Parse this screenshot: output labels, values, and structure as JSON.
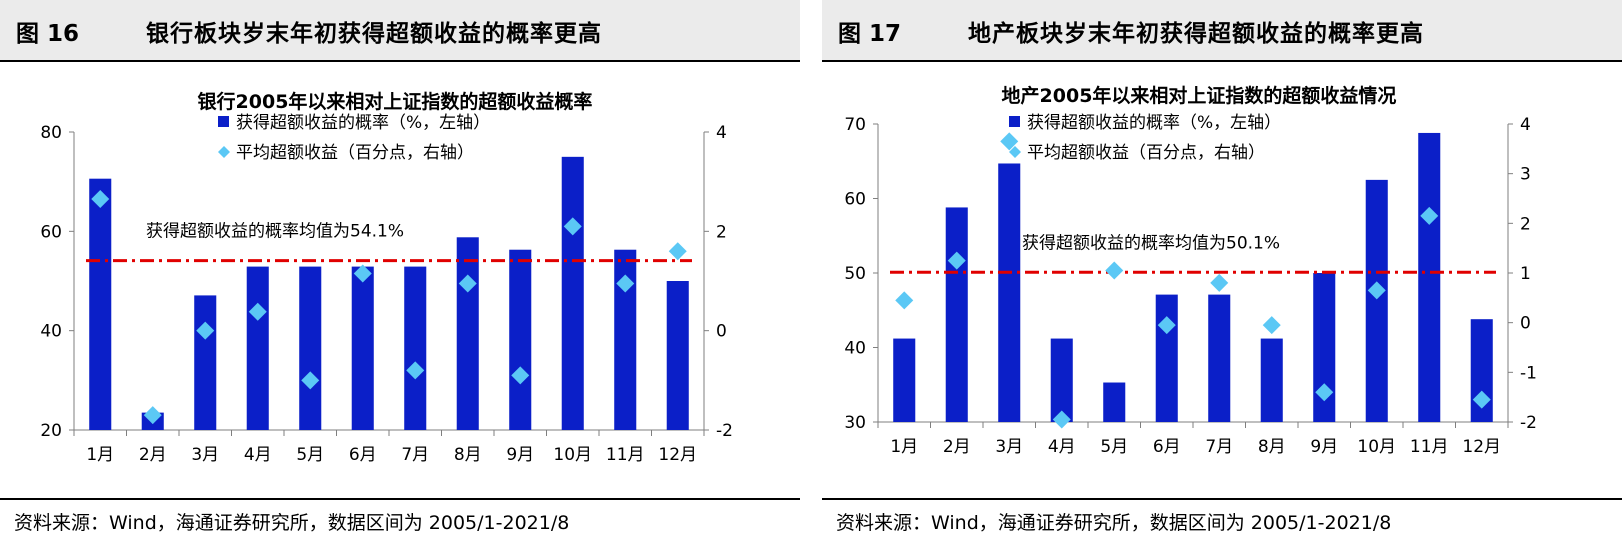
{
  "panels": [
    {
      "figure_label": "图 16",
      "header_title": "银行板块岁末年初获得超额收益的概率更高",
      "source": "资料来源：Wind，海通证券研究所，数据区间为 2005/1-2021/8"
    },
    {
      "figure_label": "图 17",
      "header_title": "地产板块岁末年初获得超额收益的概率更高",
      "source": "资料来源：Wind，海通证券研究所，数据区间为 2005/1-2021/8"
    }
  ],
  "colors": {
    "bar": "#0b1fc8",
    "diamond": "#5bc8f5",
    "avg_line": "#e00000",
    "header_bg": "#ebebeb"
  },
  "chart_data": [
    {
      "type": "bar",
      "title": "银行2005年以来相对上证指数的超额收益概率",
      "categories": [
        "1月",
        "2月",
        "3月",
        "4月",
        "5月",
        "6月",
        "7月",
        "8月",
        "9月",
        "10月",
        "11月",
        "12月"
      ],
      "series": [
        {
          "name": "获得超额收益的概率（%，左轴）",
          "type": "bar",
          "axis": "left",
          "values": [
            70.6,
            23.5,
            47.1,
            52.9,
            52.9,
            52.9,
            52.9,
            58.8,
            56.3,
            75.0,
            56.3,
            50.0
          ]
        },
        {
          "name": "平均超额收益（百分点，右轴）",
          "type": "scatter",
          "axis": "right",
          "values": [
            2.65,
            -1.7,
            0.0,
            0.38,
            -1.0,
            1.15,
            -0.8,
            0.95,
            -0.9,
            2.1,
            0.95,
            1.6
          ]
        }
      ],
      "y_left": {
        "min": 20,
        "max": 80,
        "ticks": [
          20,
          40,
          60,
          80
        ]
      },
      "y_right": {
        "min": -2,
        "max": 4,
        "ticks": [
          -2,
          0,
          2,
          4
        ]
      },
      "avg_line": {
        "value": 54.1,
        "label": "获得超额收益的概率均值为54.1%"
      },
      "legend_position": "top-center"
    },
    {
      "type": "bar",
      "title": "地产2005年以来相对上证指数的超额收益情况",
      "categories": [
        "1月",
        "2月",
        "3月",
        "4月",
        "5月",
        "6月",
        "7月",
        "8月",
        "9月",
        "10月",
        "11月",
        "12月"
      ],
      "series": [
        {
          "name": "获得超额收益的概率（%，左轴）",
          "type": "bar",
          "axis": "left",
          "values": [
            41.2,
            58.8,
            64.7,
            41.2,
            35.3,
            47.1,
            47.1,
            41.2,
            50.0,
            62.5,
            68.8,
            43.8
          ]
        },
        {
          "name": "平均超额收益（百分点，右轴）",
          "type": "scatter",
          "axis": "right",
          "values": [
            0.45,
            1.25,
            3.65,
            -1.95,
            1.05,
            -0.05,
            0.8,
            -0.05,
            -1.4,
            0.65,
            2.15,
            -1.55
          ]
        }
      ],
      "y_left": {
        "min": 30,
        "max": 70,
        "ticks": [
          30,
          40,
          50,
          60,
          70
        ]
      },
      "y_right": {
        "min": -2,
        "max": 4,
        "ticks": [
          -2,
          -1,
          0,
          1,
          2,
          3,
          4
        ]
      },
      "avg_line": {
        "value": 50.1,
        "label": "获得超额收益的概率均值为50.1%"
      },
      "legend_position": "top-center"
    }
  ]
}
